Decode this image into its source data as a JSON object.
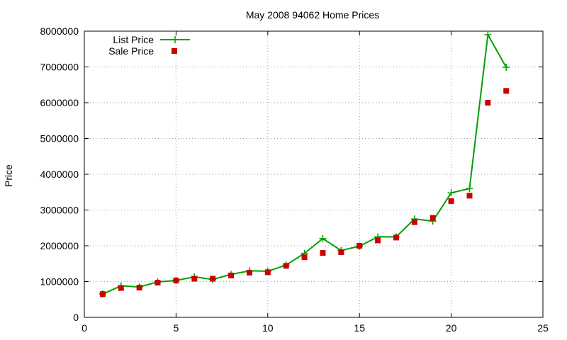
{
  "chart_data": {
    "type": "line",
    "title": "May 2008 94062 Home Prices",
    "xlabel": "",
    "ylabel": "Price",
    "xlim": [
      0,
      25
    ],
    "ylim": [
      0,
      8000000
    ],
    "xticks": [
      0,
      5,
      10,
      15,
      20,
      25
    ],
    "yticks": [
      0,
      1000000,
      2000000,
      3000000,
      4000000,
      5000000,
      6000000,
      7000000,
      8000000
    ],
    "grid": true,
    "legend": "top-left",
    "colors": {
      "list": "#00a000",
      "sale": "#cc0000"
    },
    "series": [
      {
        "name": "List Price",
        "style": "line+cross",
        "x": [
          1,
          2,
          3,
          4,
          5,
          6,
          7,
          8,
          9,
          10,
          11,
          12,
          13,
          14,
          15,
          16,
          17,
          18,
          19,
          20,
          21,
          22,
          23
        ],
        "values": [
          650000,
          880000,
          850000,
          990000,
          1030000,
          1130000,
          1060000,
          1200000,
          1300000,
          1290000,
          1460000,
          1790000,
          2200000,
          1870000,
          1990000,
          2250000,
          2250000,
          2750000,
          2690000,
          3480000,
          3600000,
          7900000,
          6990000
        ]
      },
      {
        "name": "Sale Price",
        "style": "points",
        "x": [
          1,
          2,
          3,
          4,
          5,
          6,
          7,
          8,
          9,
          10,
          11,
          12,
          13,
          14,
          15,
          16,
          17,
          18,
          19,
          20,
          21,
          22,
          23
        ],
        "values": [
          650000,
          820000,
          830000,
          970000,
          1030000,
          1080000,
          1080000,
          1170000,
          1250000,
          1260000,
          1440000,
          1680000,
          1800000,
          1820000,
          2000000,
          2150000,
          2230000,
          2660000,
          2780000,
          3250000,
          3400000,
          6000000,
          6330000
        ]
      }
    ]
  }
}
